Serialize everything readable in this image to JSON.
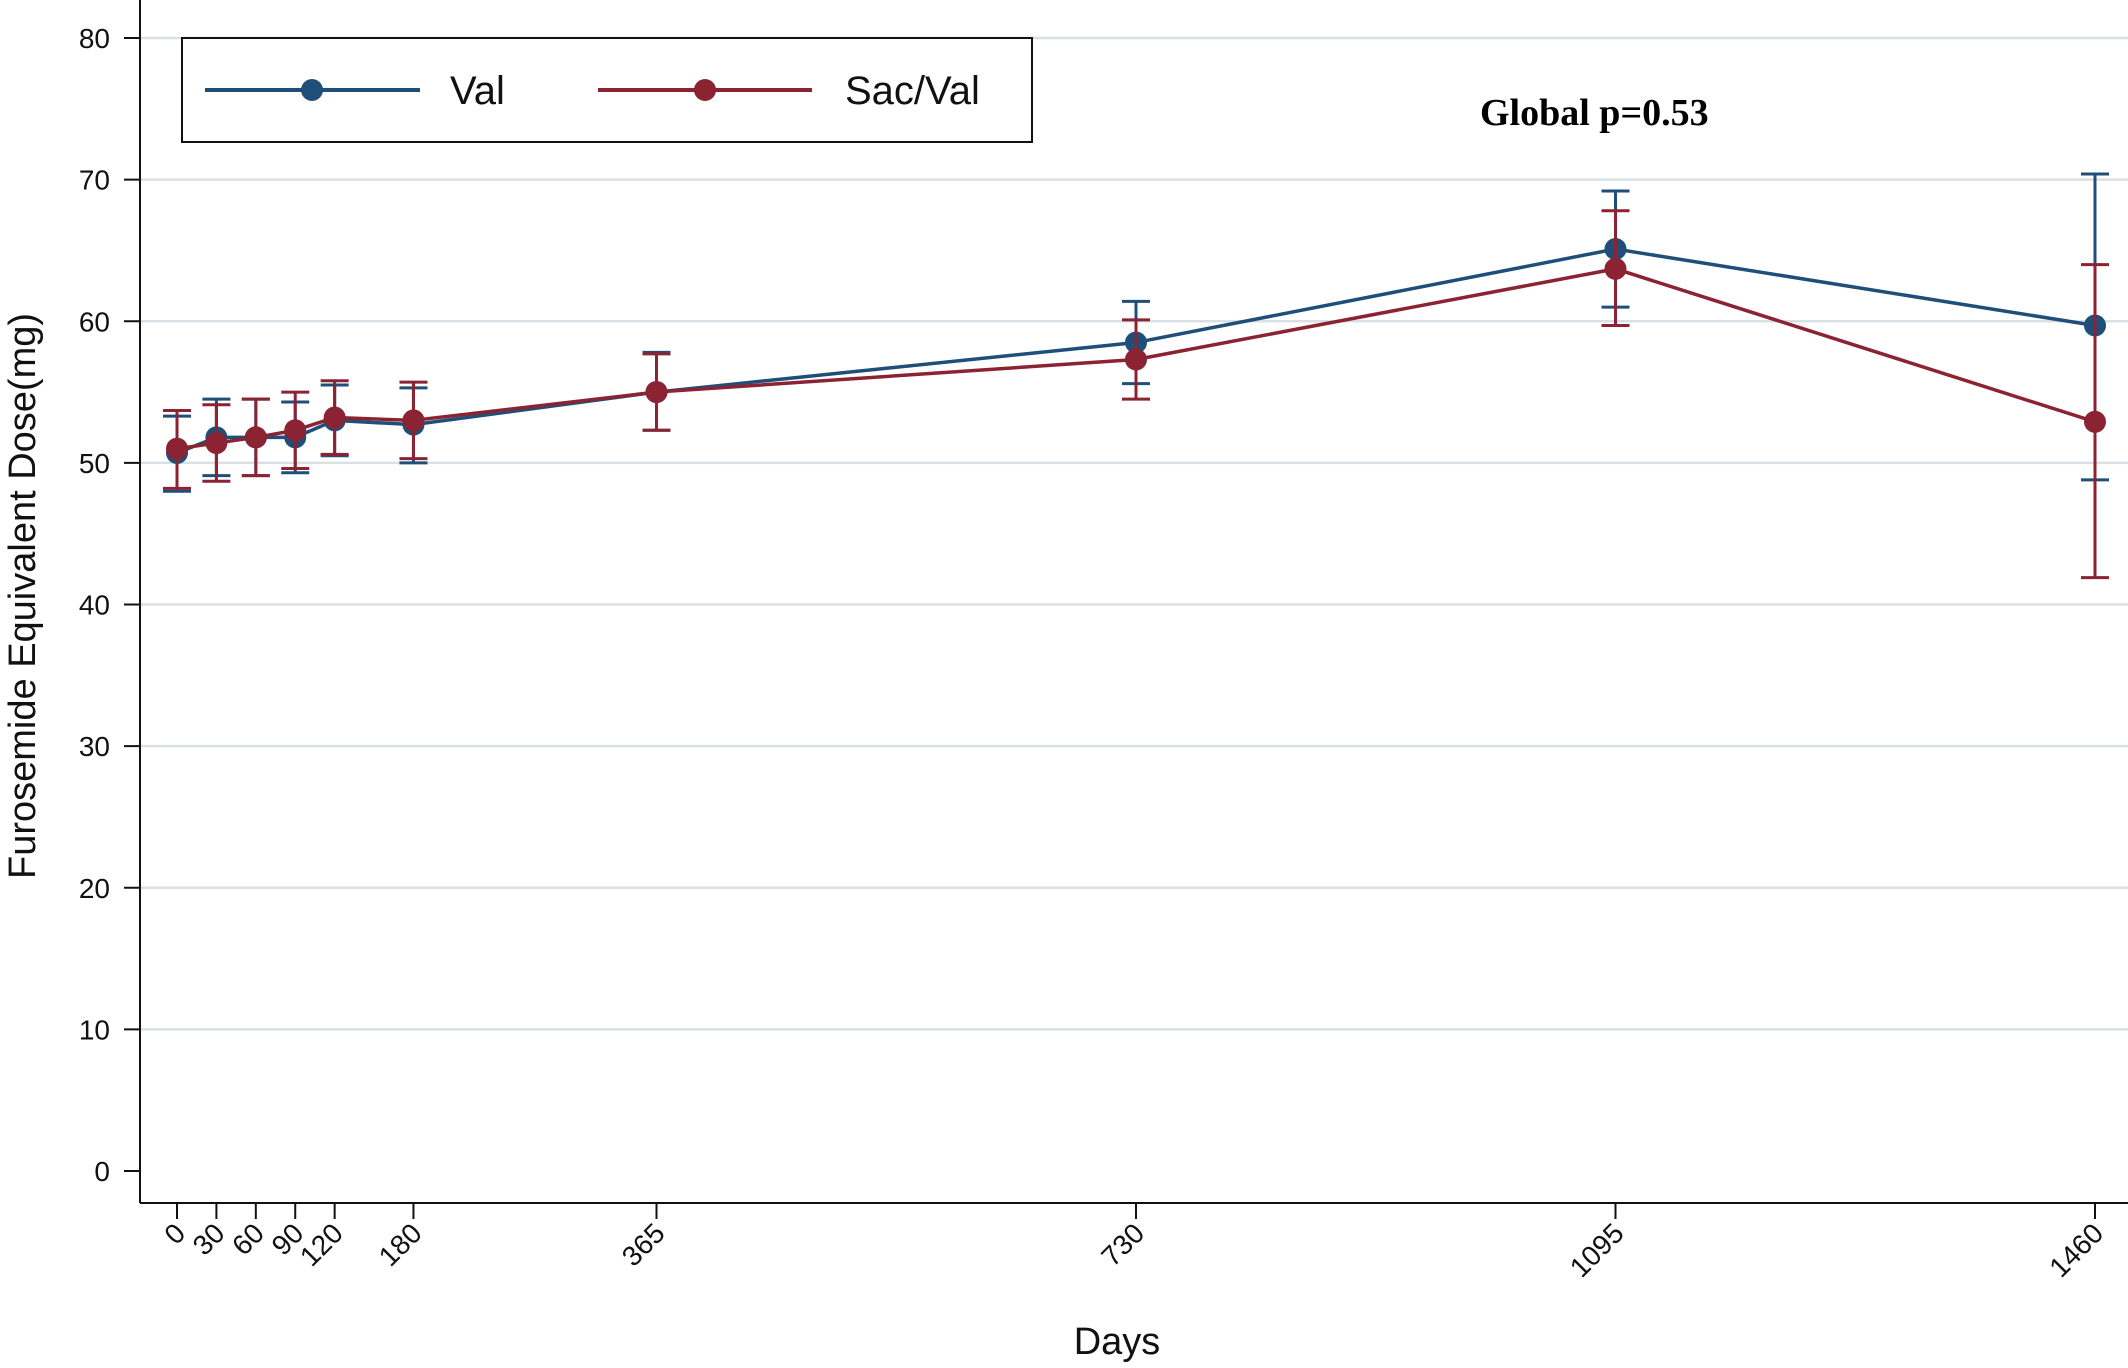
{
  "chart_data": {
    "type": "line",
    "title": "",
    "xlabel": "Days",
    "ylabel": "Furosemide Equivalent Dose(mg)",
    "x": [
      0,
      30,
      60,
      90,
      120,
      180,
      365,
      730,
      1095,
      1460
    ],
    "x_tick_labels": [
      "0",
      "30",
      "60",
      "90",
      "120",
      "180",
      "365",
      "730",
      "1095",
      "1460"
    ],
    "y_ticks": [
      0,
      10,
      20,
      30,
      40,
      50,
      60,
      70,
      80
    ],
    "ylim": [
      0,
      80
    ],
    "xlim": [
      0,
      1460
    ],
    "grid": true,
    "legend_position": "top-left",
    "annotation": "Global p=0.53",
    "series": [
      {
        "name": "Val",
        "color": "#1f4e79",
        "values": [
          50.7,
          51.8,
          51.8,
          51.8,
          53.0,
          52.7,
          55.0,
          58.5,
          65.1,
          59.7
        ],
        "lower": [
          48.0,
          49.1,
          49.1,
          49.3,
          50.5,
          50.0,
          52.3,
          55.6,
          61.0,
          48.8
        ],
        "upper": [
          53.3,
          54.5,
          54.5,
          54.3,
          55.5,
          55.3,
          57.8,
          61.4,
          69.2,
          70.4
        ]
      },
      {
        "name": "Sac/Val",
        "color": "#8b2332",
        "values": [
          51.0,
          51.4,
          51.8,
          52.3,
          53.2,
          53.0,
          55.0,
          57.3,
          63.7,
          52.9
        ],
        "lower": [
          48.2,
          48.7,
          49.1,
          49.6,
          50.6,
          50.3,
          52.3,
          54.5,
          59.7,
          41.9
        ],
        "upper": [
          53.7,
          54.1,
          54.5,
          55.0,
          55.8,
          55.7,
          57.7,
          60.1,
          67.8,
          64.0
        ]
      }
    ]
  }
}
